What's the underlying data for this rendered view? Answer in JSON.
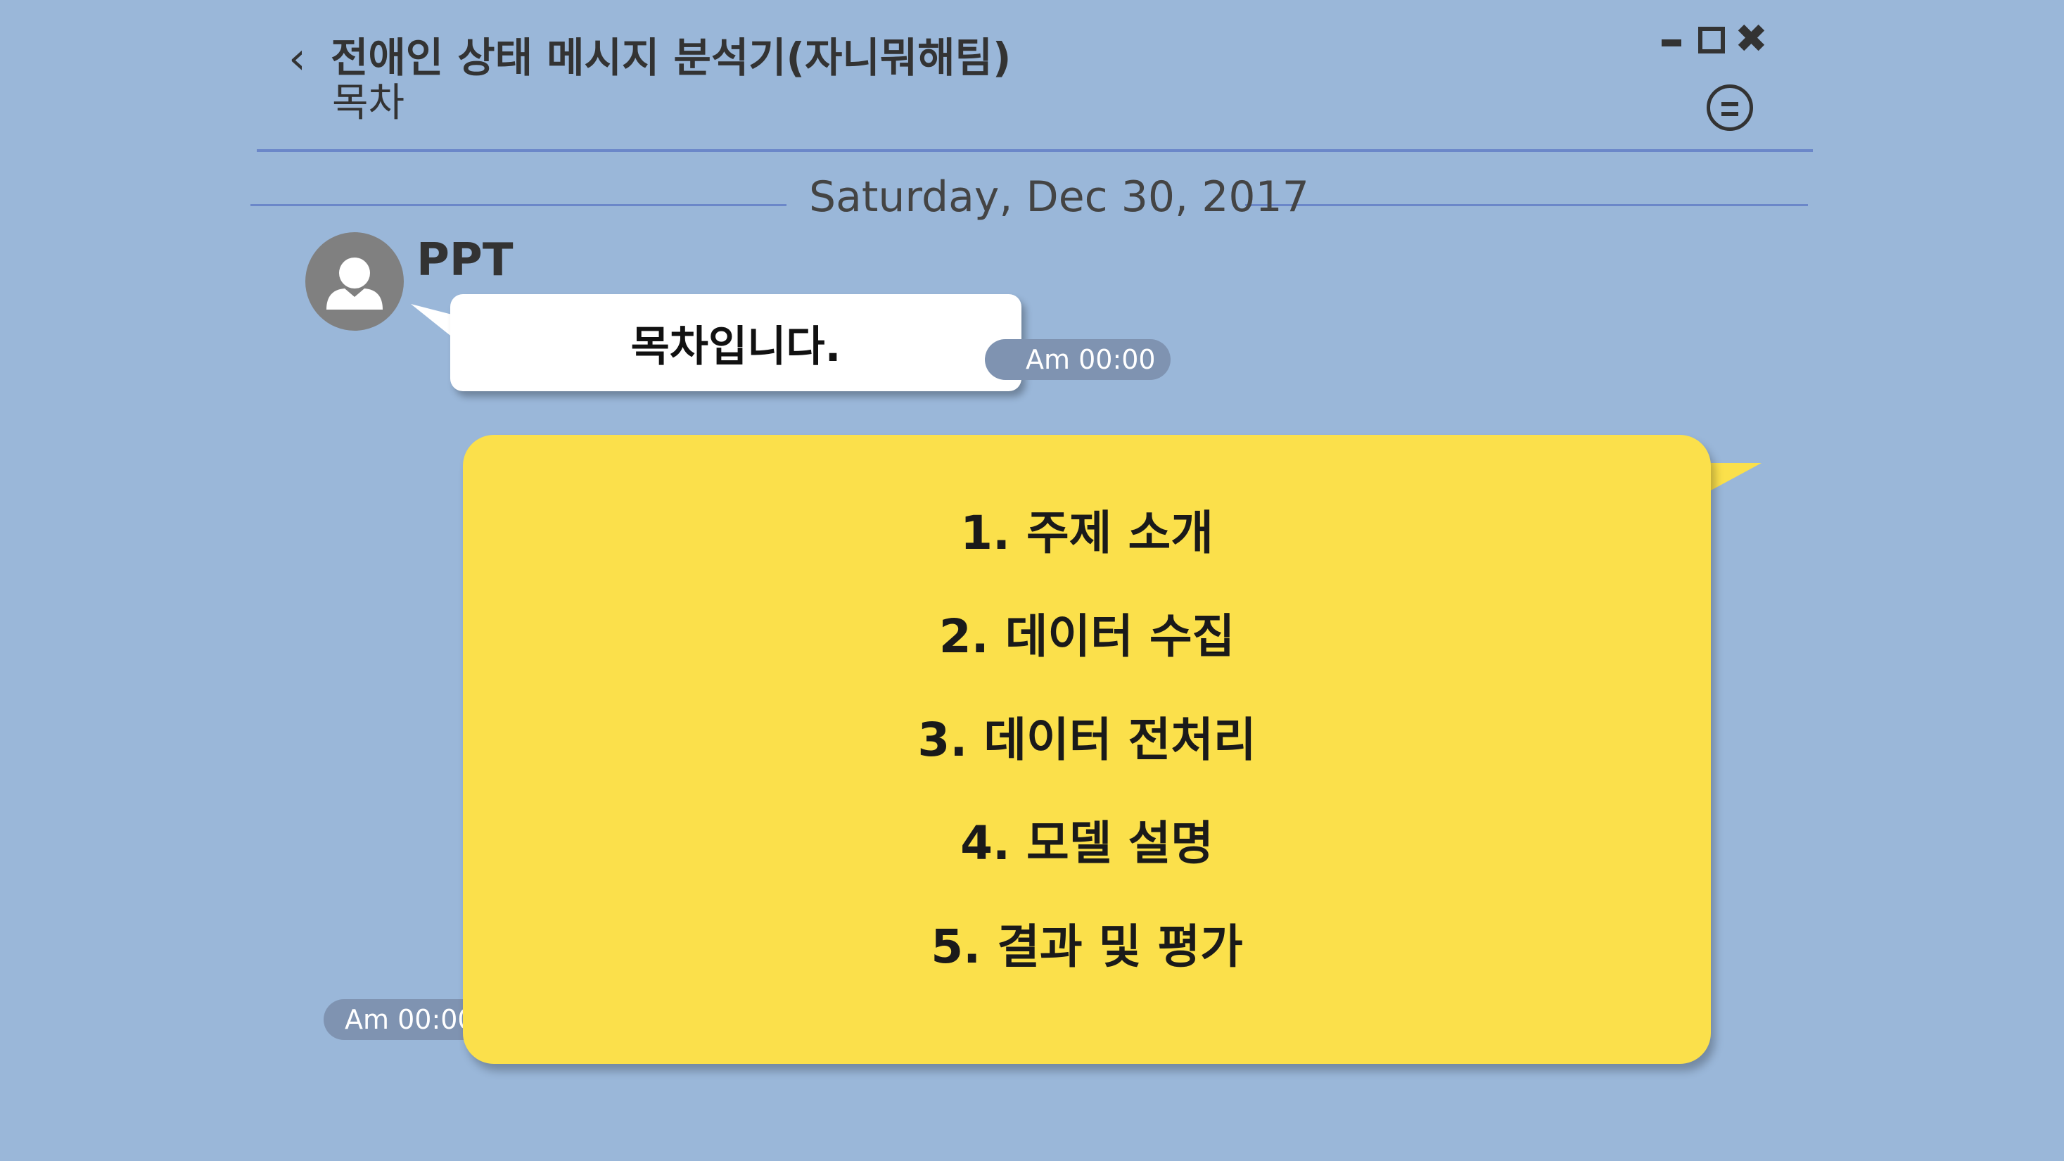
{
  "header": {
    "back_icon": "chevron-left-icon",
    "back_glyph": "‹",
    "title": "전애인 상태 메시지 분석기(자니뭐해팀)",
    "subtitle": "목차",
    "window_controls": {
      "minimize_icon": "minimize-icon",
      "maximize_icon": "maximize-icon",
      "close_icon": "close-icon",
      "close_glyph": "✖"
    },
    "menu_icon": "menu-circle-icon"
  },
  "chat": {
    "date": "Saturday, Dec 30, 2017",
    "sender_name": "PPT",
    "avatar_icon": "user-avatar-icon",
    "messages": [
      {
        "text": "목차입니다.",
        "time": "Am 00:00"
      },
      {
        "time": "Am 00:00",
        "items": [
          "1. 주제 소개",
          "2. 데이터 수집",
          "3. 데이터 전처리",
          "4. 모델 설명",
          "5. 결과 및 평가"
        ]
      }
    ]
  },
  "colors": {
    "background": "#9ab7d9",
    "divider": "#6b87c9",
    "received_bubble": "#ffffff",
    "sent_bubble": "#fbe04b",
    "timestamp_bg": "#7f93b1",
    "avatar": "#808080"
  }
}
